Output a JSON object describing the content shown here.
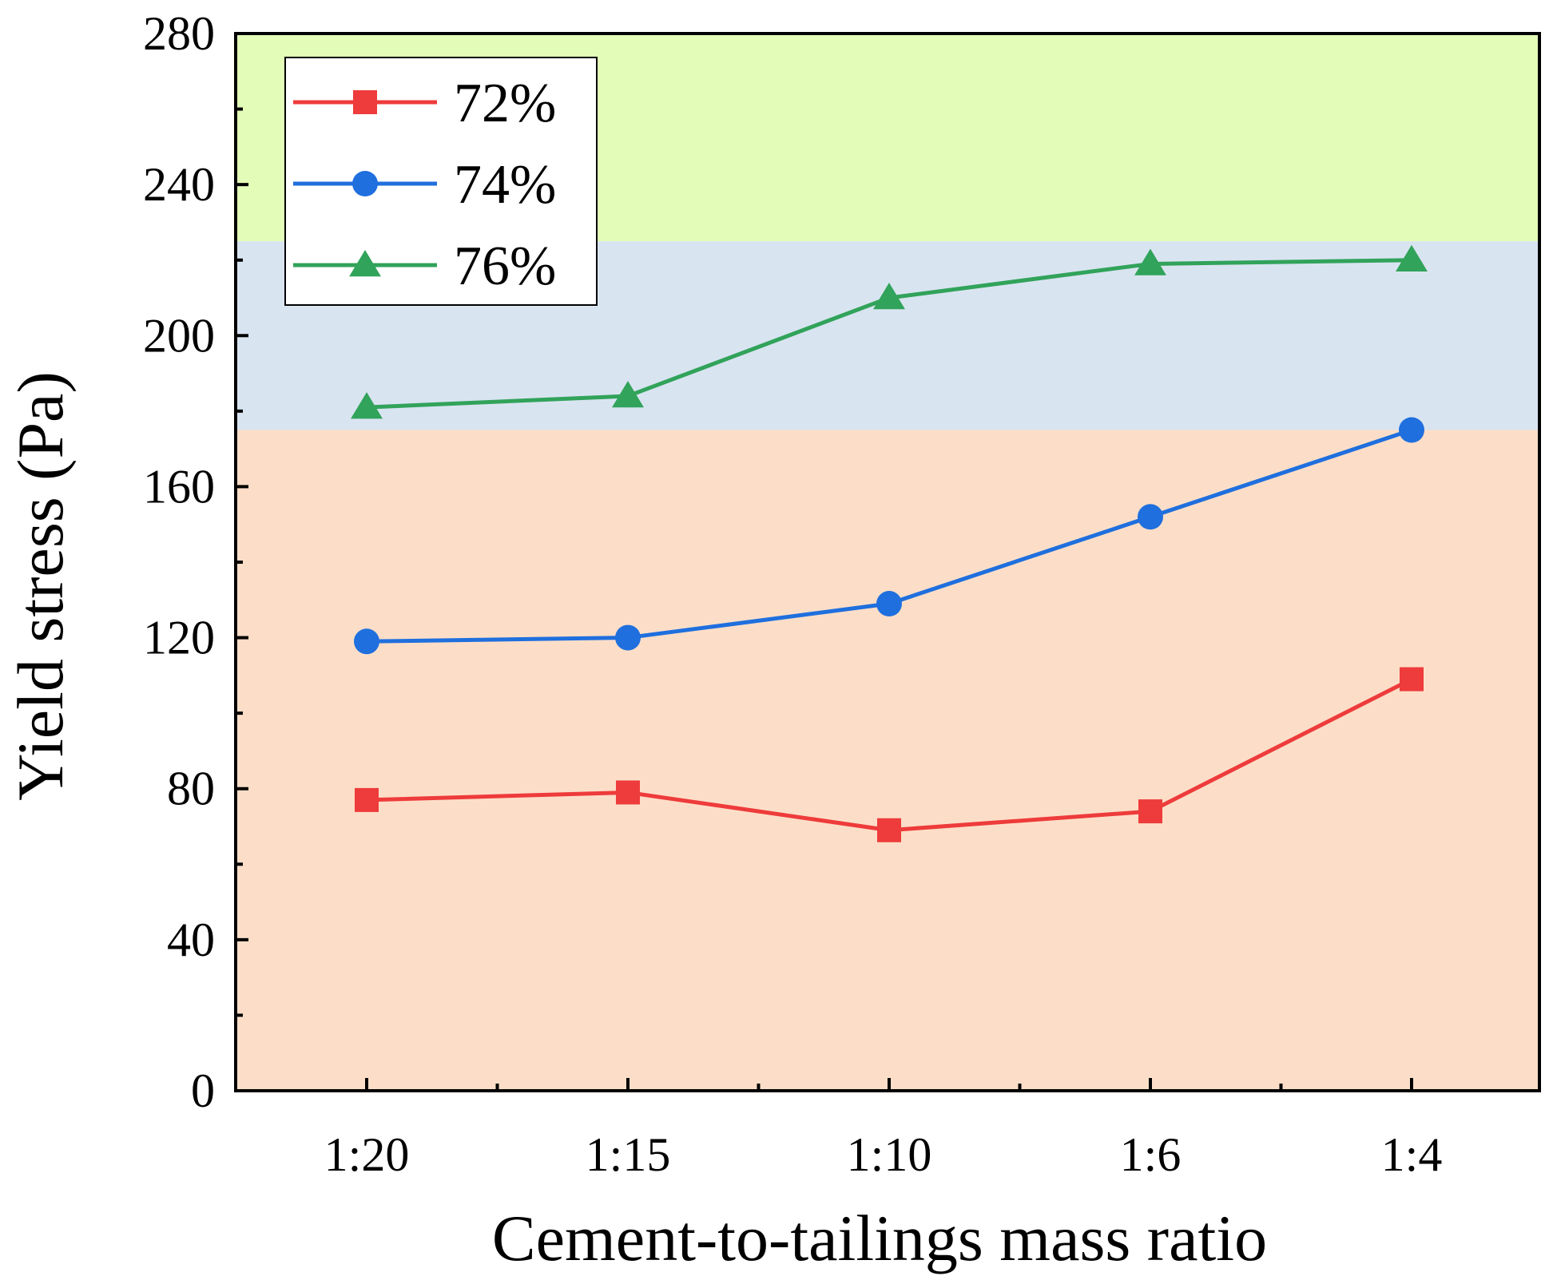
{
  "chart_data": {
    "type": "line",
    "title": "",
    "xlabel": "Cement-to-tailings mass ratio",
    "ylabel": "Yield stress (Pa)",
    "categories": [
      "1:20",
      "1:15",
      "1:10",
      "1:6",
      "1:4"
    ],
    "ylim": [
      0,
      280
    ],
    "yticks": [
      0,
      40,
      80,
      120,
      160,
      200,
      240,
      280
    ],
    "y_minor_ticks": [
      20,
      60,
      100,
      140,
      180,
      220,
      260
    ],
    "grid": false,
    "legend_position": "top-left",
    "bands": [
      {
        "from": 0,
        "to": 175,
        "color": "#fcdec8"
      },
      {
        "from": 175,
        "to": 225,
        "color": "#d9e4f1"
      },
      {
        "from": 225,
        "to": 280,
        "color": "#e3fcb8"
      }
    ],
    "series": [
      {
        "name": "72%",
        "color": "#ee3b3b",
        "marker": "square",
        "values": [
          77,
          79,
          69,
          74,
          109
        ]
      },
      {
        "name": "74%",
        "color": "#1f6fde",
        "marker": "circle",
        "values": [
          119,
          120,
          129,
          152,
          175
        ]
      },
      {
        "name": "76%",
        "color": "#31a35a",
        "marker": "triangle",
        "values": [
          181,
          184,
          210,
          219,
          220
        ]
      }
    ]
  }
}
